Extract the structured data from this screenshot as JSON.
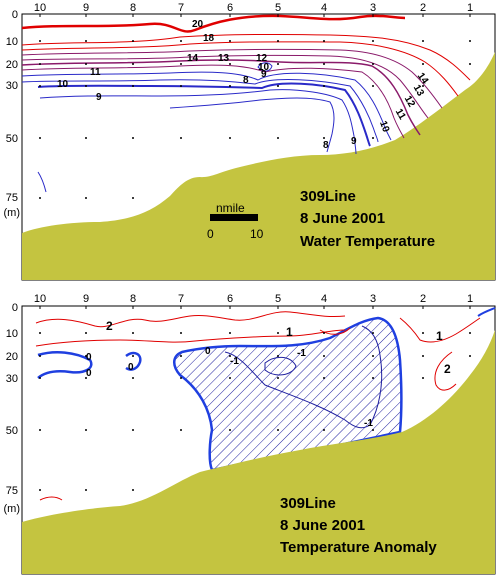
{
  "colors": {
    "seabed": "#c4c440",
    "warm": "#e00000",
    "mid": "#8a1a6a",
    "cool": "#2a2ac8",
    "zero": "#1f3fe0",
    "anomaly_pos": "#e00000",
    "anomaly_neg": "#2020a0"
  },
  "chart_data": [
    {
      "type": "contour",
      "station_ticks": [
        "10",
        "9",
        "8",
        "7",
        "6",
        "5",
        "4",
        "3",
        "2",
        "1"
      ],
      "depth_ticks": [
        "0",
        "10",
        "20",
        "30",
        "50",
        "75",
        "(m)"
      ],
      "depth_ticks_values": [
        0,
        10,
        20,
        30,
        50,
        75
      ],
      "contour_labels": [
        "20",
        "18",
        "14",
        "13",
        "11",
        "10",
        "9",
        "8",
        "8",
        "9",
        "10",
        "11",
        "12",
        "13",
        "14",
        "12",
        "10",
        "9"
      ],
      "scale_bar": {
        "title": "nmile",
        "start": "0",
        "end": "10"
      },
      "annotation": [
        "309Line",
        "8 June 2001",
        "Water Temperature"
      ]
    },
    {
      "type": "contour",
      "station_ticks": [
        "10",
        "9",
        "8",
        "7",
        "6",
        "5",
        "4",
        "3",
        "2",
        "1"
      ],
      "depth_ticks": [
        "0",
        "10",
        "20",
        "30",
        "50",
        "75",
        "(m)"
      ],
      "depth_ticks_values": [
        0,
        10,
        20,
        30,
        50,
        75
      ],
      "contour_labels": [
        "2",
        "0",
        "0",
        "0",
        "0",
        "-1",
        "-1",
        "1",
        "1",
        "2",
        "-1"
      ],
      "annotation": [
        "309Line",
        "8 June 2001",
        "Temperature Anomaly"
      ]
    }
  ]
}
